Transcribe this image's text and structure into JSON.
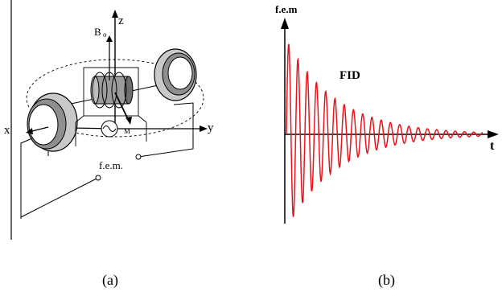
{
  "panel_a": {
    "caption": "(a)",
    "axis_z": "z",
    "axis_x": "x",
    "axis_y": "y",
    "field_label": "B",
    "field_subscript": "o",
    "moment_label": "M",
    "emf_label": "f.e.m."
  },
  "panel_b": {
    "caption": "(b)",
    "y_axis_label": "f.e.m",
    "x_axis_label": "t",
    "signal_label": "FID"
  },
  "colors": {
    "signal": "#e8141c",
    "ink": "#000000",
    "coil": "#b8b8b8"
  }
}
